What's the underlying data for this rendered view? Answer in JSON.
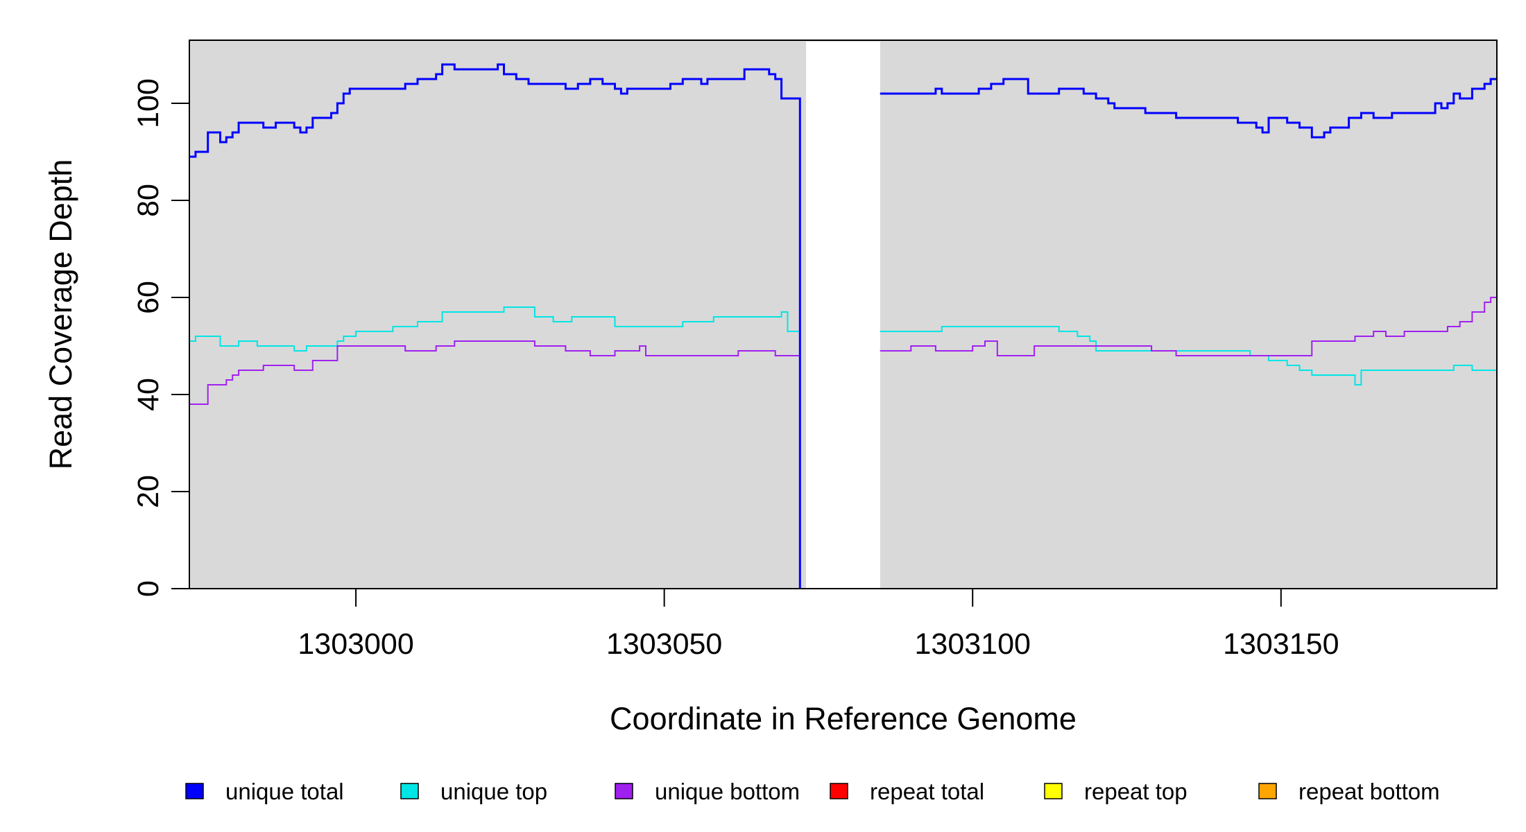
{
  "chart_data": {
    "type": "line",
    "xlabel": "Coordinate in Reference Genome",
    "ylabel": "Read Coverage Depth",
    "xlim": [
      1302973,
      1303185
    ],
    "ylim": [
      0,
      113
    ],
    "x_ticks": [
      1303000,
      1303050,
      1303100,
      1303150
    ],
    "y_ticks": [
      0,
      20,
      40,
      60,
      80,
      100
    ],
    "x_tick_labels": [
      "1303000",
      "1303050",
      "1303100",
      "1303150"
    ],
    "y_tick_labels": [
      "0",
      "20",
      "40",
      "60",
      "80",
      "100"
    ],
    "grid": false,
    "background": "#d9d9d9",
    "gap_region": [
      1303073,
      1303085
    ],
    "legend_position": "bottom",
    "series": [
      {
        "name": "unique total",
        "color": "#0000ff",
        "x": [
          1302973,
          1302974,
          1302976,
          1302978,
          1302979,
          1302980,
          1302981,
          1302982,
          1302985,
          1302987,
          1302990,
          1302991,
          1302992,
          1302993,
          1302996,
          1302997,
          1302998,
          1302999,
          1303000,
          1303008,
          1303010,
          1303013,
          1303014,
          1303016,
          1303023,
          1303024,
          1303026,
          1303028,
          1303034,
          1303036,
          1303038,
          1303040,
          1303042,
          1303043,
          1303044,
          1303045,
          1303051,
          1303053,
          1303056,
          1303057,
          1303063,
          1303067,
          1303068,
          1303069,
          1303071,
          1303072
        ],
        "y": [
          89,
          90,
          94,
          92,
          93,
          94,
          96,
          96,
          95,
          96,
          95,
          94,
          95,
          97,
          98,
          100,
          102,
          103,
          103,
          104,
          105,
          106,
          108,
          107,
          108,
          106,
          105,
          104,
          103,
          104,
          105,
          104,
          103,
          102,
          103,
          103,
          104,
          105,
          104,
          105,
          107,
          106,
          105,
          101,
          101,
          0
        ]
      },
      {
        "name": "unique total",
        "color": "#0000ff",
        "x": [
          1303085,
          1303090,
          1303094,
          1303095,
          1303101,
          1303103,
          1303105,
          1303109,
          1303110,
          1303114,
          1303117,
          1303118,
          1303120,
          1303122,
          1303123,
          1303125,
          1303126,
          1303127,
          1303128,
          1303133,
          1303143,
          1303146,
          1303147,
          1303148,
          1303151,
          1303153,
          1303155,
          1303157,
          1303158,
          1303160,
          1303161,
          1303163,
          1303165,
          1303168,
          1303175,
          1303176,
          1303177,
          1303178,
          1303179,
          1303181,
          1303183,
          1303184,
          1303185
        ],
        "y": [
          102,
          102,
          103,
          102,
          103,
          104,
          105,
          102,
          102,
          103,
          103,
          102,
          101,
          100,
          99,
          99,
          99,
          99,
          98,
          97,
          96,
          95,
          94,
          97,
          96,
          95,
          93,
          94,
          95,
          95,
          97,
          98,
          97,
          98,
          100,
          99,
          100,
          102,
          101,
          103,
          104,
          105,
          105
        ]
      },
      {
        "name": "unique top",
        "color": "#00e5e5",
        "x": [
          1302973,
          1302974,
          1302978,
          1302981,
          1302984,
          1302990,
          1302992,
          1302997,
          1302998,
          1303000,
          1303006,
          1303010,
          1303014,
          1303023,
          1303024,
          1303029,
          1303032,
          1303035,
          1303042,
          1303052,
          1303053,
          1303058,
          1303069,
          1303070,
          1303072
        ],
        "y": [
          51,
          52,
          50,
          51,
          50,
          49,
          50,
          51,
          52,
          53,
          54,
          55,
          57,
          57,
          58,
          56,
          55,
          56,
          54,
          54,
          55,
          56,
          57,
          53,
          52
        ]
      },
      {
        "name": "unique top",
        "color": "#00e5e5",
        "x": [
          1303085,
          1303095,
          1303110,
          1303114,
          1303117,
          1303119,
          1303120,
          1303129,
          1303133,
          1303145,
          1303148,
          1303151,
          1303153,
          1303155,
          1303162,
          1303163,
          1303170,
          1303178,
          1303181,
          1303185
        ],
        "y": [
          53,
          54,
          54,
          53,
          52,
          51,
          49,
          49,
          49,
          48,
          47,
          46,
          45,
          44,
          42,
          45,
          45,
          46,
          45,
          44
        ]
      },
      {
        "name": "unique bottom",
        "color": "#a020f0",
        "x": [
          1302973,
          1302976,
          1302979,
          1302980,
          1302981,
          1302982,
          1302985,
          1302987,
          1302990,
          1302993,
          1302996,
          1302997,
          1303006,
          1303008,
          1303013,
          1303016,
          1303029,
          1303034,
          1303038,
          1303042,
          1303046,
          1303047,
          1303062,
          1303068,
          1303072
        ],
        "y": [
          38,
          42,
          43,
          44,
          45,
          45,
          46,
          46,
          45,
          47,
          47,
          50,
          50,
          49,
          50,
          51,
          50,
          49,
          48,
          49,
          50,
          48,
          49,
          48,
          49
        ]
      },
      {
        "name": "unique bottom",
        "color": "#a020f0",
        "x": [
          1303085,
          1303090,
          1303094,
          1303095,
          1303100,
          1303102,
          1303104,
          1303109,
          1303110,
          1303126,
          1303129,
          1303133,
          1303146,
          1303155,
          1303160,
          1303162,
          1303165,
          1303167,
          1303170,
          1303177,
          1303178,
          1303179,
          1303181,
          1303183,
          1303184,
          1303185
        ],
        "y": [
          49,
          50,
          49,
          49,
          50,
          51,
          48,
          48,
          50,
          50,
          49,
          48,
          48,
          51,
          51,
          52,
          53,
          52,
          53,
          54,
          54,
          55,
          57,
          59,
          60,
          60
        ]
      },
      {
        "name": "repeat total",
        "color": "#ff0000",
        "x": [
          1302973,
          1303185
        ],
        "y": [
          0,
          0
        ]
      },
      {
        "name": "repeat top",
        "color": "#ffff00",
        "x": [
          1302973,
          1303185
        ],
        "y": [
          0,
          0
        ]
      },
      {
        "name": "repeat bottom",
        "color": "#ffa500",
        "x": [
          1302973,
          1303185
        ],
        "y": [
          0,
          0
        ]
      }
    ],
    "legend": [
      {
        "label": "unique total",
        "color": "#0000ff"
      },
      {
        "label": "unique top",
        "color": "#00e5e5"
      },
      {
        "label": "unique bottom",
        "color": "#a020f0"
      },
      {
        "label": "repeat total",
        "color": "#ff0000"
      },
      {
        "label": "repeat top",
        "color": "#ffff00"
      },
      {
        "label": "repeat bottom",
        "color": "#ffa500"
      }
    ]
  }
}
